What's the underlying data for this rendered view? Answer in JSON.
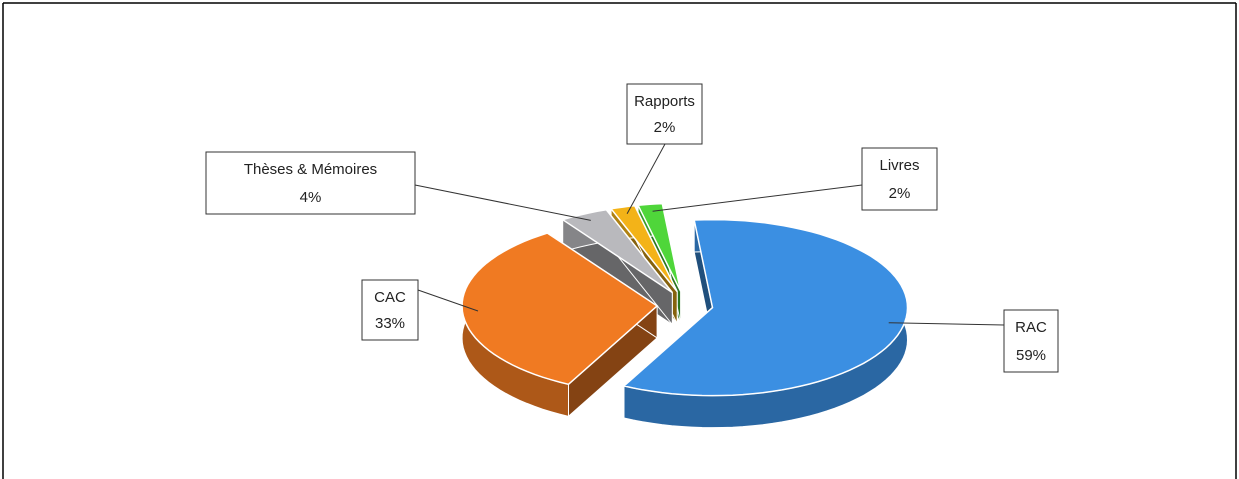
{
  "chart_data": {
    "type": "pie",
    "categories": [
      "CAC",
      "Thèses & Mémoires",
      "Rapports",
      "Livres",
      "RAC"
    ],
    "values": [
      33,
      4,
      2,
      2,
      59
    ],
    "value_labels": [
      "33%",
      "4%",
      "2%",
      "2%",
      "59%"
    ],
    "colors": [
      "#f07a22",
      "#b9b9bd",
      "#f3b318",
      "#4fd63a",
      "#3b8fe2"
    ],
    "legend": false
  }
}
